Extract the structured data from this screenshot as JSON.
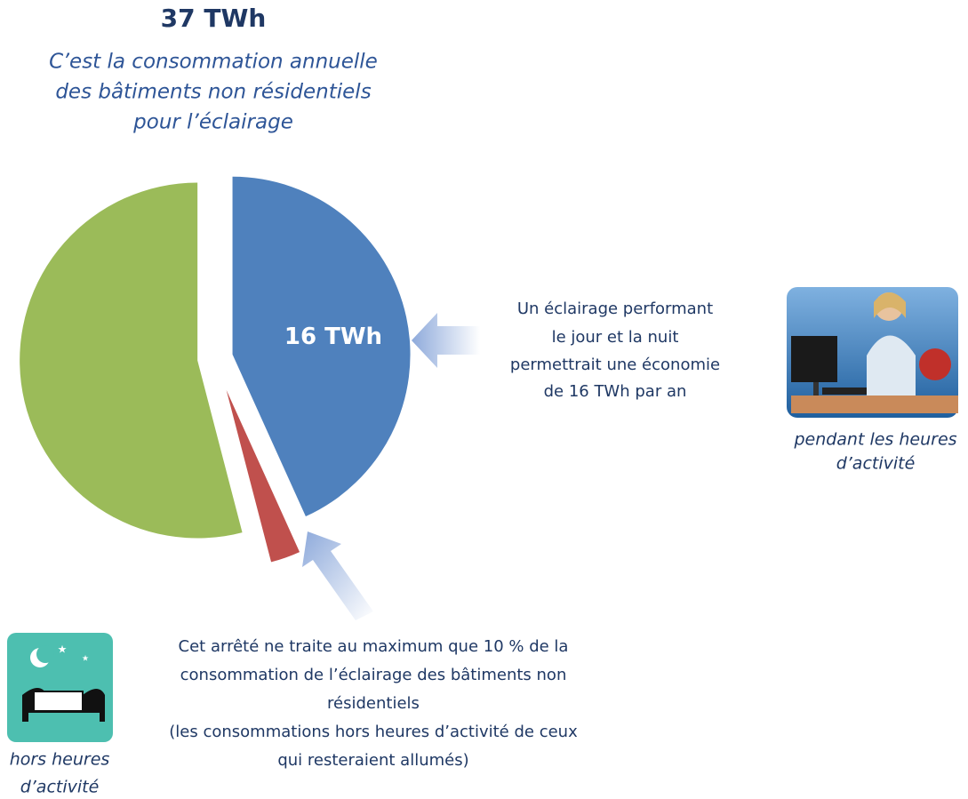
{
  "chart_data": {
    "type": "pie",
    "title": "37 TWh",
    "subtitle": [
      "C’est la consommation annuelle",
      "des bâtiments non résidentiels",
      "pour l’éclairage"
    ],
    "values": [
      16,
      1,
      20
    ],
    "value_labels": [
      "16 TWh",
      null,
      null
    ],
    "colors": [
      "#4f81bd",
      "#c0504d",
      "#9bbb59"
    ],
    "annotations": {
      "right_text": [
        "Un éclairage performant",
        "le jour et la nuit",
        "permettrait une économie",
        "de 16 TWh par an"
      ],
      "right_caption": [
        "pendant les heures",
        "d’activité"
      ],
      "bottom_text": [
        "Cet arrêté ne traite au maximum que 10 % de la",
        "consommation de l’éclairage des bâtiments non",
        "résidentiels",
        "(les consommations hors heures d’activité de ceux",
        "qui resteraient allumés)"
      ],
      "left_caption": [
        "hors heures",
        "d’activité"
      ]
    }
  }
}
